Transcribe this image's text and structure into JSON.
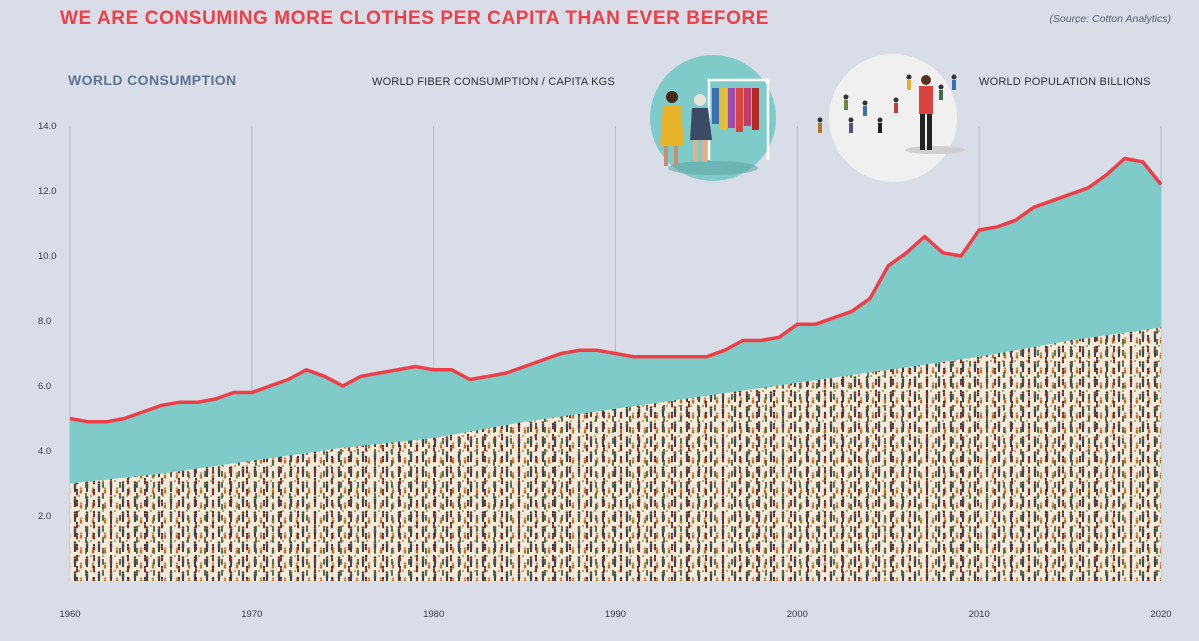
{
  "header": {
    "title": "WE ARE CONSUMING MORE CLOTHES PER CAPITA THAN EVER BEFORE",
    "source": "(Source: Cotton Analytics)",
    "section_title": "WORLD CONSUMPTION"
  },
  "chart_data": {
    "type": "area",
    "series": [
      {
        "name": "WORLD FIBER CONSUMPTION / CAPITA KGS",
        "x": [
          1960,
          1961,
          1962,
          1963,
          1964,
          1965,
          1966,
          1967,
          1968,
          1969,
          1970,
          1971,
          1972,
          1973,
          1974,
          1975,
          1976,
          1977,
          1978,
          1979,
          1980,
          1981,
          1982,
          1983,
          1984,
          1985,
          1986,
          1987,
          1988,
          1989,
          1990,
          1991,
          1992,
          1993,
          1994,
          1995,
          1996,
          1997,
          1998,
          1999,
          2000,
          2001,
          2002,
          2003,
          2004,
          2005,
          2006,
          2007,
          2008,
          2009,
          2010,
          2011,
          2012,
          2013,
          2014,
          2015,
          2016,
          2017,
          2018,
          2019,
          2020
        ],
        "values": [
          5.0,
          4.9,
          4.9,
          5.0,
          5.2,
          5.4,
          5.5,
          5.5,
          5.6,
          5.8,
          5.8,
          6.0,
          6.2,
          6.5,
          6.3,
          6.0,
          6.3,
          6.4,
          6.5,
          6.6,
          6.5,
          6.5,
          6.2,
          6.3,
          6.4,
          6.6,
          6.8,
          7.0,
          7.1,
          7.1,
          7.0,
          6.9,
          6.9,
          6.9,
          6.9,
          6.9,
          7.1,
          7.4,
          7.4,
          7.5,
          7.9,
          7.9,
          8.1,
          8.3,
          8.7,
          9.7,
          10.1,
          10.6,
          10.1,
          10.0,
          10.8,
          10.9,
          11.1,
          11.5,
          11.7,
          11.9,
          12.1,
          12.5,
          13.0,
          12.9,
          12.2
        ],
        "color": "#ee3e48",
        "fill": "#7ecbc9"
      },
      {
        "name": "WORLD POPULATION BILLIONS",
        "x": [
          1960,
          1965,
          1970,
          1975,
          1980,
          1985,
          1990,
          1995,
          2000,
          2005,
          2010,
          2015,
          2020
        ],
        "values": [
          3.0,
          3.3,
          3.7,
          4.1,
          4.4,
          4.9,
          5.3,
          5.7,
          6.1,
          6.5,
          6.9,
          7.4,
          7.8
        ],
        "fill": "#f3ead9"
      }
    ],
    "x_ticks": [
      "1960",
      "1970",
      "1980",
      "1990",
      "2000",
      "2010",
      "2020"
    ],
    "y_ticks": [
      "2.0",
      "4.0",
      "6.0",
      "8.0",
      "10.0",
      "12.0",
      "14.0"
    ],
    "xlim": [
      1960,
      2020
    ],
    "ylim": [
      0,
      14
    ],
    "grid": "vertical-lines-per-decade",
    "legend": "top-labels-with-illustrations"
  },
  "illustrations": [
    {
      "name": "shopping-clothes-illustration",
      "icon": "shopping-clothes-icon"
    },
    {
      "name": "population-crowd-illustration",
      "icon": "crowd-icon"
    }
  ]
}
